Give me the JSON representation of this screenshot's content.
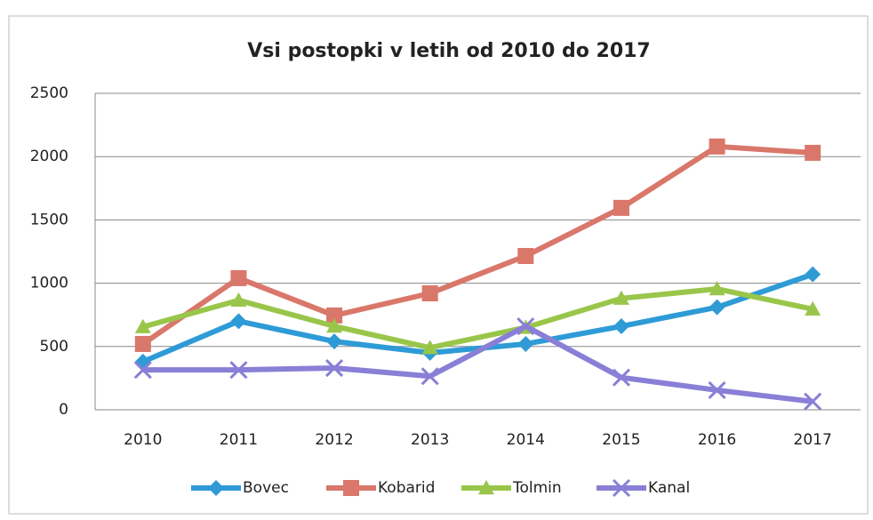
{
  "chart_data": {
    "type": "line",
    "title": "Vsi postopki v letih od 2010 do 2017",
    "categories": [
      "2010",
      "2011",
      "2012",
      "2013",
      "2014",
      "2015",
      "2016",
      "2017"
    ],
    "series": [
      {
        "name": "Bovec",
        "color": "#2e9bd6",
        "marker": "diamond",
        "values": [
          380,
          700,
          540,
          450,
          520,
          660,
          810,
          1070
        ]
      },
      {
        "name": "Kobarid",
        "color": "#d9776a",
        "marker": "square",
        "values": [
          520,
          1040,
          745,
          920,
          1215,
          1595,
          2080,
          2030
        ]
      },
      {
        "name": "Tolmin",
        "color": "#99c64a",
        "marker": "triangle",
        "values": [
          655,
          865,
          660,
          490,
          650,
          880,
          955,
          795
        ]
      },
      {
        "name": "Kanal",
        "color": "#8a7fd6",
        "marker": "x",
        "values": [
          315,
          315,
          330,
          265,
          660,
          255,
          155,
          65
        ]
      }
    ],
    "ylim": [
      0,
      2500
    ],
    "yticks": [
      0,
      500,
      1000,
      1500,
      2000,
      2500
    ],
    "grid": true,
    "legend": "bottom"
  }
}
